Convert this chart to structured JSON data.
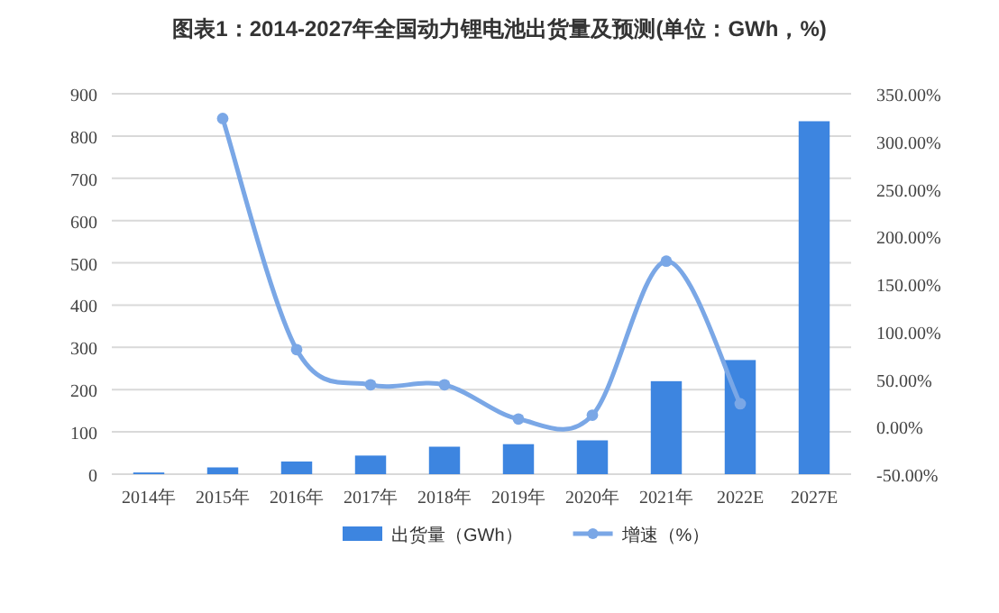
{
  "chart_data": {
    "type": "bar",
    "title": "图表1：2014-2027年全国动力锂电池出货量及预测(单位：GWh，%)",
    "categories": [
      "2014年",
      "2015年",
      "2016年",
      "2017年",
      "2018年",
      "2019年",
      "2020年",
      "2021年",
      "2022E",
      "2027E"
    ],
    "series": [
      {
        "name": "出货量（GWh）",
        "color": "#3d85e0",
        "values": [
          4,
          16,
          30,
          44,
          65,
          71,
          80,
          220,
          270,
          835
        ]
      },
      {
        "name": "增速（%）",
        "type": "line",
        "axis": "y2",
        "color": "#7aa7e6",
        "values": [
          null,
          324,
          81,
          44,
          44,
          8,
          12,
          174,
          24,
          null
        ]
      }
    ],
    "ylim": [
      0,
      900
    ],
    "yticks": [
      0,
      100,
      200,
      300,
      400,
      500,
      600,
      700,
      800,
      900
    ],
    "y2lim": [
      -50,
      350
    ],
    "y2ticks": [
      {
        "value": -50,
        "label": "-50.00%"
      },
      {
        "value": 0,
        "label": "0.00%"
      },
      {
        "value": 50,
        "label": "50.00%"
      },
      {
        "value": 100,
        "label": "100.00%"
      },
      {
        "value": 150,
        "label": "150.00%"
      },
      {
        "value": 200,
        "label": "200.00%"
      },
      {
        "value": 250,
        "label": "250.00%"
      },
      {
        "value": 300,
        "label": "300.00%"
      },
      {
        "value": 350,
        "label": "350.00%"
      }
    ],
    "grid": "y",
    "legend": "bottom",
    "marker": "circle",
    "line_style": "solid"
  }
}
